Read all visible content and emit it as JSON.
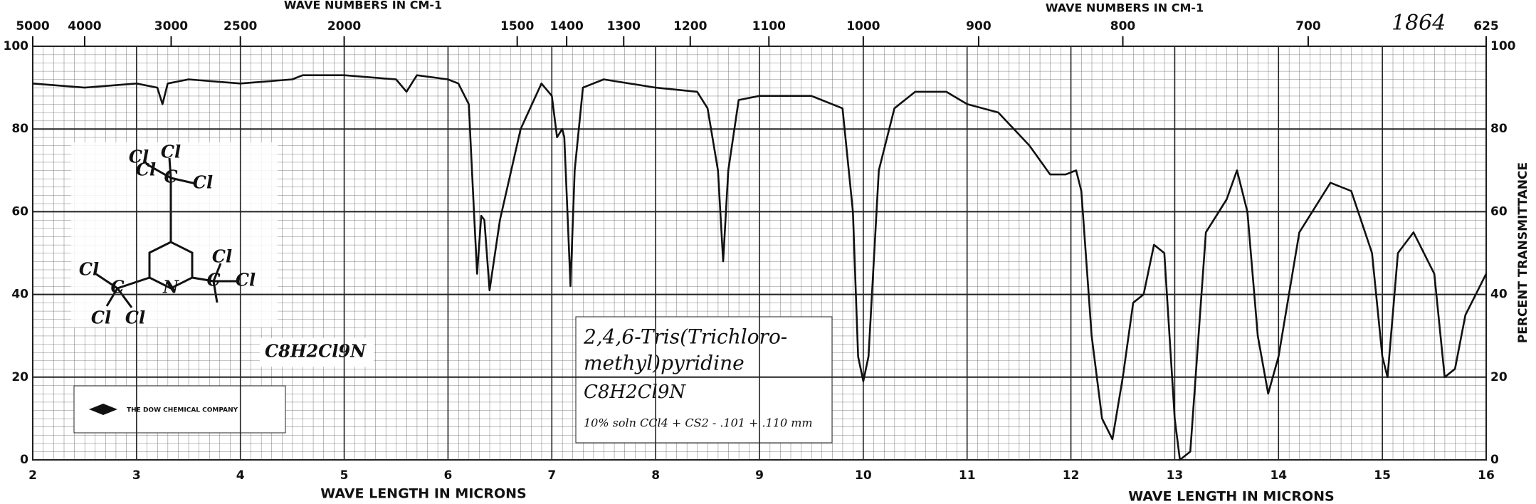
{
  "chart_data": {
    "type": "line",
    "title_top": [
      "WAVE NUMBERS IN CM-1",
      "WAVE NUMBERS IN CM-1"
    ],
    "xlabel": [
      "WAVE LENGTH IN MICRONS",
      "WAVE LENGTH IN MICRONS"
    ],
    "ylabel": "PERCENT TRANSMITTANCE",
    "spectrum_number": "1864",
    "sample_note": [
      "2,4,6-Tris(Trichloro-",
      "methyl)pyridine",
      "C8H2Cl9N",
      "10% soln CCl4 + CS2 - .101 + .110 mm"
    ],
    "formula": "C8H2Cl9N",
    "company": "THE DOW CHEMICAL COMPANY",
    "structure_atoms": [
      "Cl",
      "Cl",
      "C",
      "Cl",
      "Cl",
      "C",
      "Cl",
      "Cl",
      "N",
      "C",
      "Cl",
      "Cl",
      "Cl"
    ],
    "color": "#111111",
    "grid": true,
    "xlim": [
      2,
      16
    ],
    "ylim": [
      0,
      100
    ],
    "xticks": [
      2,
      3,
      4,
      5,
      6,
      7,
      8,
      9,
      10,
      11,
      12,
      13,
      14,
      15,
      16
    ],
    "yticks": [
      0,
      20,
      40,
      60,
      80,
      100
    ],
    "x2ticks": [
      5000,
      4000,
      3000,
      2500,
      2000,
      1500,
      1400,
      1300,
      1200,
      1100,
      1000,
      900,
      800,
      700,
      625
    ],
    "x": [
      2.0,
      2.5,
      3.0,
      3.2,
      3.25,
      3.3,
      3.5,
      4.0,
      4.5,
      4.6,
      5.0,
      5.5,
      5.6,
      5.7,
      6.0,
      6.1,
      6.2,
      6.25,
      6.28,
      6.32,
      6.35,
      6.4,
      6.5,
      6.7,
      6.9,
      7.0,
      7.05,
      7.1,
      7.12,
      7.15,
      7.18,
      7.22,
      7.3,
      7.5,
      8.0,
      8.4,
      8.5,
      8.6,
      8.65,
      8.7,
      8.8,
      9.0,
      9.5,
      9.8,
      9.9,
      9.95,
      10.0,
      10.05,
      10.15,
      10.3,
      10.5,
      10.8,
      11.0,
      11.3,
      11.6,
      11.8,
      11.95,
      12.05,
      12.1,
      12.2,
      12.3,
      12.4,
      12.5,
      12.6,
      12.7,
      12.8,
      12.9,
      12.95,
      13.0,
      13.05,
      13.15,
      13.3,
      13.5,
      13.6,
      13.7,
      13.8,
      13.9,
      14.0,
      14.2,
      14.5,
      14.7,
      14.9,
      15.0,
      15.05,
      15.15,
      15.3,
      15.5,
      15.6,
      15.7,
      15.8,
      16.0
    ],
    "values": [
      91,
      90,
      91,
      90,
      86,
      91,
      92,
      91,
      92,
      93,
      93,
      92,
      89,
      93,
      92,
      91,
      86,
      60,
      45,
      59,
      58,
      41,
      58,
      80,
      91,
      88,
      78,
      80,
      78,
      60,
      42,
      70,
      90,
      92,
      90,
      89,
      85,
      70,
      48,
      70,
      87,
      88,
      88,
      85,
      60,
      25,
      19,
      25,
      70,
      85,
      89,
      89,
      86,
      84,
      76,
      69,
      69,
      70,
      65,
      30,
      10,
      5,
      20,
      38,
      40,
      52,
      50,
      30,
      10,
      0,
      2,
      55,
      63,
      70,
      60,
      30,
      16,
      25,
      55,
      67,
      65,
      50,
      25,
      20,
      50,
      55,
      45,
      20,
      22,
      35,
      45
    ]
  }
}
